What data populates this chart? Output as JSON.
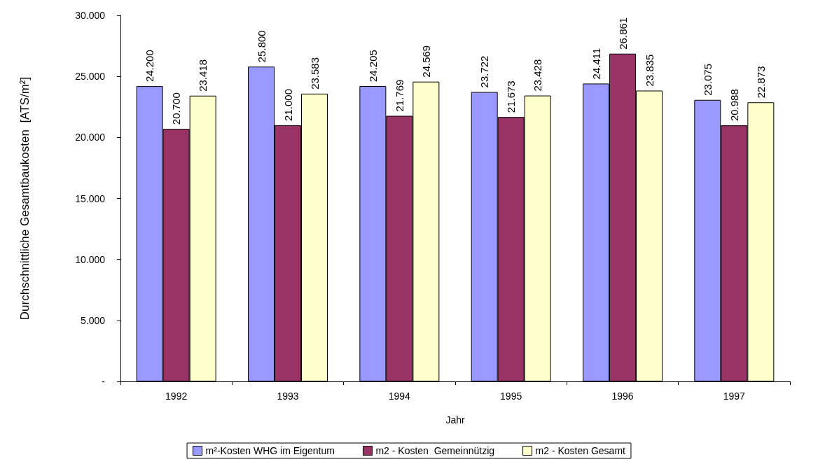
{
  "chart_data": {
    "type": "bar",
    "xlabel": "Jahr",
    "ylabel": "Durchschnittliche Gesamtbaukosten  [ATS/m²]",
    "categories": [
      "1992",
      "1993",
      "1994",
      "1995",
      "1996",
      "1997"
    ],
    "series": [
      {
        "name": "m²-Kosten WHG im Eigentum",
        "color": "#9999ff",
        "values": [
          24200,
          25800,
          24205,
          23722,
          24411,
          23075
        ],
        "value_labels": [
          "24.200",
          "25.800",
          "24.205",
          "23.722",
          "24.411",
          "23.075"
        ]
      },
      {
        "name": "m2 - Kosten  Gemeinnützig",
        "color": "#993366",
        "values": [
          20700,
          21000,
          21769,
          21673,
          26861,
          20988
        ],
        "value_labels": [
          "20.700",
          "21.000",
          "21.769",
          "21.673",
          "26.861",
          "20.988"
        ]
      },
      {
        "name": "m2 - Kosten Gesamt",
        "color": "#ffffcc",
        "values": [
          23418,
          23583,
          24569,
          23428,
          23835,
          22873
        ],
        "value_labels": [
          "23.418",
          "23.583",
          "24.569",
          "23.428",
          "23.835",
          "22.873"
        ]
      }
    ],
    "ylim": [
      0,
      30000
    ],
    "yticks": [
      {
        "value": 0,
        "label": "-"
      },
      {
        "value": 5000,
        "label": "5.000"
      },
      {
        "value": 10000,
        "label": "10.000"
      },
      {
        "value": 15000,
        "label": "15.000"
      },
      {
        "value": 20000,
        "label": "20.000"
      },
      {
        "value": 25000,
        "label": "25.000"
      },
      {
        "value": 30000,
        "label": "30.000"
      }
    ],
    "grid": false,
    "legend": "bottom"
  }
}
